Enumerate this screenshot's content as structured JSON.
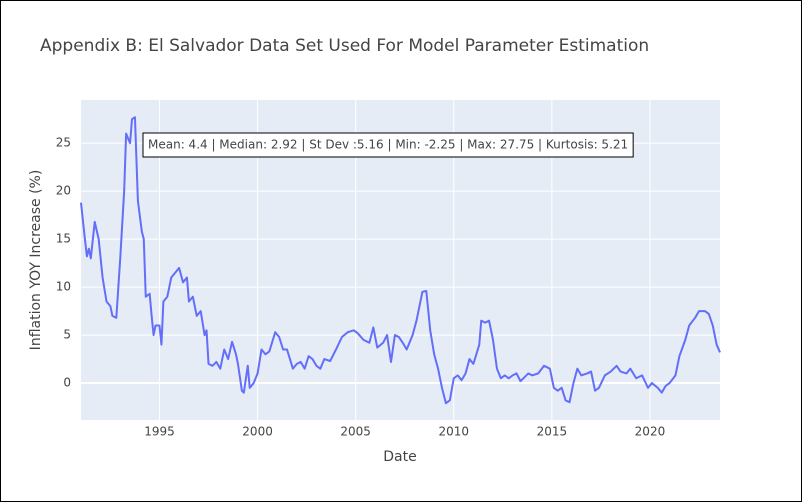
{
  "chart_data": {
    "type": "line",
    "title": "Appendix B: El Salvador Data Set Used For Model Parameter Estimation",
    "x_label": "Date",
    "y_label": "Inflation YOY Increase (%)",
    "annotation": "Mean: 4.4 | Median: 2.92 | St Dev :5.16 | Min: -2.25 | Max: 27.75 | Kurtosis: 5.21",
    "color": "#636efa",
    "grid": true,
    "xlim": [
      1991,
      2023.57
    ],
    "xticks": [
      1995,
      2000,
      2005,
      2010,
      2015,
      2020
    ],
    "ylim": [
      -3.85,
      29.5
    ],
    "yticks": [
      0,
      5,
      10,
      15,
      20,
      25
    ],
    "x": [
      1991.0,
      1991.2,
      1991.3,
      1991.4,
      1991.5,
      1991.7,
      1991.9,
      1992.1,
      1992.3,
      1992.5,
      1992.6,
      1992.8,
      1993.0,
      1993.2,
      1993.3,
      1993.5,
      1993.6,
      1993.75,
      1993.9,
      1994.1,
      1994.2,
      1994.3,
      1994.5,
      1994.6,
      1994.7,
      1994.8,
      1995.0,
      1995.1,
      1995.2,
      1995.4,
      1995.6,
      1995.8,
      1996.0,
      1996.2,
      1996.4,
      1996.5,
      1996.7,
      1996.9,
      1997.1,
      1997.3,
      1997.4,
      1997.5,
      1997.7,
      1997.9,
      1998.1,
      1998.3,
      1998.5,
      1998.7,
      1998.9,
      1999.0,
      1999.2,
      1999.3,
      1999.5,
      1999.6,
      1999.8,
      2000.0,
      2000.2,
      2000.4,
      2000.6,
      2000.9,
      2001.1,
      2001.3,
      2001.5,
      2001.8,
      2002.0,
      2002.2,
      2002.4,
      2002.6,
      2002.8,
      2003.0,
      2003.2,
      2003.4,
      2003.7,
      2004.0,
      2004.3,
      2004.6,
      2004.9,
      2005.1,
      2005.4,
      2005.7,
      2005.9,
      2006.1,
      2006.4,
      2006.6,
      2006.8,
      2007.0,
      2007.2,
      2007.4,
      2007.6,
      2007.9,
      2008.1,
      2008.4,
      2008.6,
      2008.8,
      2009.0,
      2009.2,
      2009.4,
      2009.6,
      2009.8,
      2010.0,
      2010.2,
      2010.4,
      2010.6,
      2010.8,
      2011.0,
      2011.3,
      2011.4,
      2011.6,
      2011.8,
      2012.0,
      2012.2,
      2012.4,
      2012.6,
      2012.8,
      2013.0,
      2013.2,
      2013.4,
      2013.6,
      2013.8,
      2014.0,
      2014.3,
      2014.6,
      2014.9,
      2015.1,
      2015.3,
      2015.5,
      2015.7,
      2015.9,
      2016.1,
      2016.3,
      2016.5,
      2016.8,
      2017.0,
      2017.2,
      2017.4,
      2017.7,
      2018.0,
      2018.3,
      2018.5,
      2018.8,
      2019.0,
      2019.3,
      2019.6,
      2019.9,
      2020.1,
      2020.4,
      2020.6,
      2020.8,
      2021.0,
      2021.3,
      2021.5,
      2021.8,
      2022.0,
      2022.3,
      2022.5,
      2022.8,
      2023.0,
      2023.2,
      2023.4,
      2023.57
    ],
    "values": [
      18.8,
      15,
      13.2,
      14,
      13,
      16.8,
      15,
      11,
      8.5,
      8,
      7,
      6.8,
      13,
      20,
      26,
      25,
      27.5,
      27.7,
      19,
      15.8,
      15,
      9,
      9.3,
      7,
      5,
      6,
      6,
      4,
      8.5,
      9,
      11,
      11.5,
      12,
      10.5,
      11,
      8.5,
      9,
      7,
      7.5,
      5,
      5.5,
      2,
      1.8,
      2.2,
      1.5,
      3.5,
      2.5,
      4.3,
      3,
      2,
      -0.8,
      -1,
      1.8,
      -0.5,
      0,
      1,
      3.5,
      3,
      3.3,
      5.3,
      4.8,
      3.5,
      3.5,
      1.5,
      2,
      2.2,
      1.5,
      2.8,
      2.5,
      1.8,
      1.5,
      2.5,
      2.3,
      3.5,
      4.8,
      5.3,
      5.5,
      5.2,
      4.5,
      4.2,
      5.8,
      3.7,
      4.2,
      5,
      2.2,
      5,
      4.8,
      4.2,
      3.5,
      5,
      6.5,
      9.5,
      9.6,
      5.5,
      3,
      1.5,
      -0.5,
      -2.1,
      -1.8,
      0.5,
      0.8,
      0.3,
      1,
      2.5,
      2,
      4,
      6.5,
      6.3,
      6.5,
      4.5,
      1.5,
      0.5,
      0.8,
      0.5,
      0.8,
      1,
      0.2,
      0.6,
      1,
      0.8,
      1,
      1.8,
      1.5,
      -0.5,
      -0.8,
      -0.5,
      -1.8,
      -2,
      0,
      1.5,
      0.8,
      1,
      1.2,
      -0.8,
      -0.5,
      0.8,
      1.2,
      1.8,
      1.2,
      1,
      1.5,
      0.5,
      0.8,
      -0.5,
      0,
      -0.5,
      -1,
      -0.3,
      0,
      0.8,
      2.8,
      4.5,
      6,
      6.8,
      7.5,
      7.5,
      7.2,
      6,
      4,
      3.2
    ]
  }
}
